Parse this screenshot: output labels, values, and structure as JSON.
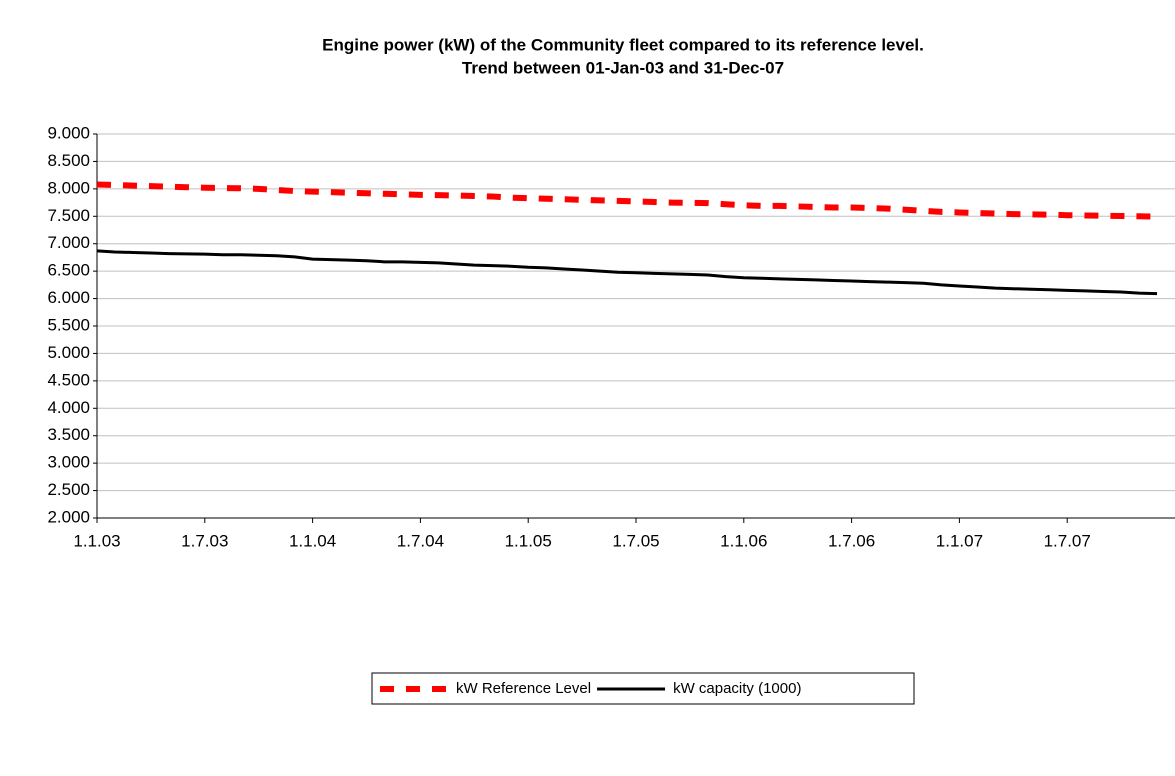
{
  "chart_data": {
    "type": "line",
    "title": "Engine power (kW) of the Community fleet compared to its reference level.",
    "subtitle": "Trend between 01-Jan-03 and 31-Dec-07",
    "categories": [
      "1.1.03",
      null,
      null,
      null,
      null,
      null,
      "1.7.03",
      null,
      null,
      null,
      null,
      null,
      "1.1.04",
      null,
      null,
      null,
      null,
      null,
      "1.7.04",
      null,
      null,
      null,
      null,
      null,
      "1.1.05",
      null,
      null,
      null,
      null,
      null,
      "1.7.05",
      null,
      null,
      null,
      null,
      null,
      "1.1.06",
      null,
      null,
      null,
      null,
      null,
      "1.7.06",
      null,
      null,
      null,
      null,
      null,
      "1.1.07",
      null,
      null,
      null,
      null,
      null,
      "1.7.07",
      null,
      null,
      null,
      null,
      null
    ],
    "series": [
      {
        "name": "kW Reference Level",
        "color": "#ff0000",
        "dashed": true,
        "values": [
          8080,
          8070,
          8060,
          8050,
          8040,
          8030,
          8020,
          8015,
          8010,
          8000,
          7980,
          7960,
          7950,
          7940,
          7930,
          7920,
          7910,
          7900,
          7890,
          7885,
          7880,
          7870,
          7860,
          7840,
          7830,
          7820,
          7810,
          7800,
          7790,
          7780,
          7770,
          7760,
          7750,
          7745,
          7740,
          7720,
          7700,
          7690,
          7690,
          7680,
          7670,
          7660,
          7660,
          7650,
          7640,
          7620,
          7600,
          7580,
          7570,
          7560,
          7550,
          7540,
          7535,
          7530,
          7520,
          7515,
          7510,
          7505,
          7500,
          7495
        ]
      },
      {
        "name": "kW capacity (1000)",
        "color": "#000000",
        "dashed": false,
        "values": [
          6870,
          6850,
          6840,
          6830,
          6820,
          6815,
          6810,
          6800,
          6800,
          6790,
          6780,
          6760,
          6720,
          6710,
          6700,
          6690,
          6670,
          6670,
          6660,
          6650,
          6630,
          6610,
          6600,
          6590,
          6570,
          6560,
          6540,
          6520,
          6500,
          6480,
          6470,
          6460,
          6450,
          6440,
          6430,
          6400,
          6380,
          6370,
          6360,
          6350,
          6340,
          6330,
          6320,
          6310,
          6300,
          6290,
          6280,
          6250,
          6230,
          6210,
          6190,
          6180,
          6170,
          6160,
          6150,
          6140,
          6130,
          6120,
          6100,
          6090
        ]
      }
    ],
    "ylim": [
      2000,
      9000
    ],
    "yticks": [
      {
        "value": 2000,
        "label": "2.000"
      },
      {
        "value": 2500,
        "label": "2.500"
      },
      {
        "value": 3000,
        "label": "3.000"
      },
      {
        "value": 3500,
        "label": "3.500"
      },
      {
        "value": 4000,
        "label": "4.000"
      },
      {
        "value": 4500,
        "label": "4.500"
      },
      {
        "value": 5000,
        "label": "5.000"
      },
      {
        "value": 5500,
        "label": "5.500"
      },
      {
        "value": 6000,
        "label": "6.000"
      },
      {
        "value": 6500,
        "label": "6.500"
      },
      {
        "value": 7000,
        "label": "7.000"
      },
      {
        "value": 7500,
        "label": "7.500"
      },
      {
        "value": 8000,
        "label": "8.000"
      },
      {
        "value": 8500,
        "label": "8.500"
      },
      {
        "value": 9000,
        "label": "9.000"
      }
    ],
    "grid": true
  }
}
